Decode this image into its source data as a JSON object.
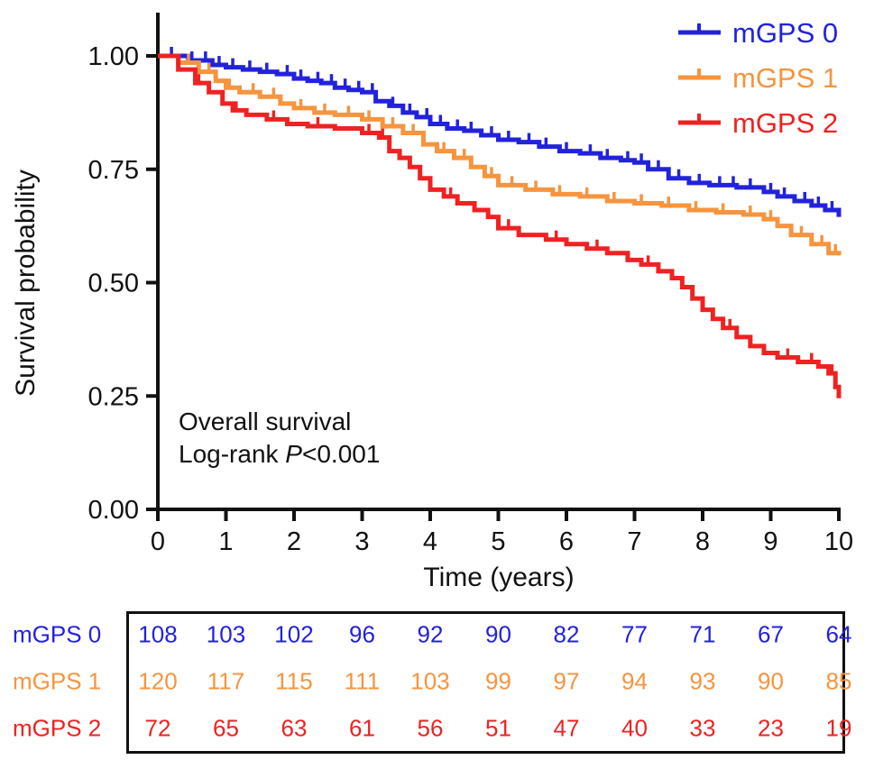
{
  "figure": {
    "background": "#ffffff",
    "text_color": "#111111"
  },
  "chart_data": {
    "type": "line",
    "subtype": "kaplan-meier-step",
    "title": "",
    "xlabel": "Time (years)",
    "ylabel": "Survival probability",
    "xlim": [
      0,
      10
    ],
    "ylim": [
      0,
      1.0
    ],
    "xticks": [
      0,
      1,
      2,
      3,
      4,
      5,
      6,
      7,
      8,
      9,
      10
    ],
    "yticks": [
      0,
      0.25,
      0.5,
      0.75,
      1.0
    ],
    "ytick_labels": [
      "0.00",
      "0.25",
      "0.50",
      "0.75",
      "1.00"
    ],
    "grid": false,
    "legend_position": "top-right",
    "annotation": {
      "line1": "Overall survival",
      "line2_prefix": "Log-rank ",
      "line2_italic": "P",
      "line2_suffix": "<0.001"
    },
    "series": [
      {
        "name": "mGPS 0",
        "color": "#2222dd",
        "x": [
          0,
          0.45,
          0.8,
          1.0,
          1.25,
          1.5,
          1.75,
          2.0,
          2.2,
          2.4,
          2.6,
          2.8,
          3.0,
          3.2,
          3.4,
          3.6,
          3.8,
          4.0,
          4.25,
          4.5,
          4.75,
          5.0,
          5.3,
          5.6,
          5.9,
          6.2,
          6.5,
          6.8,
          7.0,
          7.2,
          7.5,
          7.8,
          8.1,
          8.5,
          8.9,
          9.1,
          9.35,
          9.6,
          9.8,
          10.0
        ],
        "y": [
          1.0,
          0.99,
          0.98,
          0.975,
          0.97,
          0.965,
          0.96,
          0.95,
          0.945,
          0.94,
          0.93,
          0.925,
          0.92,
          0.9,
          0.89,
          0.875,
          0.865,
          0.85,
          0.84,
          0.835,
          0.825,
          0.815,
          0.81,
          0.8,
          0.79,
          0.785,
          0.775,
          0.77,
          0.765,
          0.75,
          0.73,
          0.72,
          0.715,
          0.71,
          0.7,
          0.69,
          0.68,
          0.67,
          0.66,
          0.645
        ],
        "censor_x": [
          0.2,
          0.5,
          0.7,
          0.9,
          1.1,
          1.35,
          1.6,
          1.9,
          2.1,
          2.35,
          2.55,
          2.75,
          2.95,
          3.15,
          3.45,
          3.7,
          3.95,
          4.15,
          4.4,
          4.6,
          4.9,
          5.15,
          5.45,
          5.7,
          6.0,
          6.35,
          6.6,
          6.9,
          7.1,
          7.35,
          7.65,
          7.95,
          8.25,
          8.45,
          8.7,
          9.0,
          9.2,
          9.5,
          9.7,
          9.9
        ]
      },
      {
        "name": "mGPS 1",
        "color": "#f7943e",
        "x": [
          0,
          0.3,
          0.6,
          0.85,
          1.0,
          1.2,
          1.5,
          1.8,
          2.0,
          2.3,
          2.6,
          3.0,
          3.3,
          3.6,
          3.9,
          4.1,
          4.35,
          4.6,
          4.8,
          5.0,
          5.4,
          5.8,
          6.2,
          6.6,
          7.0,
          7.4,
          7.8,
          8.2,
          8.6,
          8.9,
          9.1,
          9.3,
          9.6,
          9.85,
          10.0
        ],
        "y": [
          1.0,
          0.985,
          0.965,
          0.945,
          0.93,
          0.92,
          0.91,
          0.895,
          0.885,
          0.875,
          0.87,
          0.86,
          0.845,
          0.83,
          0.805,
          0.79,
          0.775,
          0.755,
          0.735,
          0.715,
          0.705,
          0.695,
          0.69,
          0.68,
          0.675,
          0.67,
          0.66,
          0.655,
          0.65,
          0.64,
          0.625,
          0.605,
          0.585,
          0.565,
          0.56
        ],
        "censor_x": [
          0.45,
          0.75,
          1.05,
          1.4,
          1.7,
          2.1,
          2.45,
          2.8,
          3.1,
          3.45,
          3.75,
          4.2,
          4.5,
          4.9,
          5.2,
          5.55,
          5.9,
          6.3,
          6.7,
          7.1,
          7.5,
          7.9,
          8.3,
          8.7,
          9.0,
          9.45,
          9.75,
          9.95
        ]
      },
      {
        "name": "mGPS 2",
        "color": "#ee2222",
        "x": [
          0,
          0.3,
          0.55,
          0.75,
          0.95,
          1.1,
          1.3,
          1.6,
          1.9,
          2.2,
          2.6,
          3.0,
          3.25,
          3.4,
          3.55,
          3.7,
          3.85,
          4.0,
          4.2,
          4.4,
          4.65,
          4.85,
          5.0,
          5.3,
          5.7,
          6.0,
          6.3,
          6.6,
          6.9,
          7.1,
          7.35,
          7.55,
          7.7,
          7.85,
          8.0,
          8.15,
          8.3,
          8.5,
          8.7,
          8.9,
          9.1,
          9.4,
          9.7,
          9.85,
          9.95,
          10.0
        ],
        "y": [
          1.0,
          0.97,
          0.94,
          0.92,
          0.895,
          0.88,
          0.87,
          0.86,
          0.85,
          0.845,
          0.84,
          0.83,
          0.82,
          0.79,
          0.775,
          0.755,
          0.73,
          0.705,
          0.69,
          0.675,
          0.66,
          0.645,
          0.62,
          0.605,
          0.595,
          0.585,
          0.575,
          0.565,
          0.55,
          0.54,
          0.525,
          0.51,
          0.49,
          0.465,
          0.44,
          0.42,
          0.4,
          0.38,
          0.36,
          0.345,
          0.335,
          0.325,
          0.315,
          0.3,
          0.27,
          0.245
        ],
        "censor_x": [
          0.6,
          1.15,
          1.7,
          2.35,
          3.1,
          3.3,
          4.3,
          5.15,
          5.85,
          6.45,
          7.2,
          8.4,
          9.25,
          9.6,
          9.9
        ]
      }
    ]
  },
  "risk_table": {
    "time_points": [
      0,
      1,
      2,
      3,
      4,
      5,
      6,
      7,
      8,
      9,
      10
    ],
    "rows": [
      {
        "label": "mGPS 0",
        "color": "#2222dd",
        "values": [
          108,
          103,
          102,
          96,
          92,
          90,
          82,
          77,
          71,
          67,
          64
        ]
      },
      {
        "label": "mGPS 1",
        "color": "#f7943e",
        "values": [
          120,
          117,
          115,
          111,
          103,
          99,
          97,
          94,
          93,
          90,
          85
        ]
      },
      {
        "label": "mGPS 2",
        "color": "#ee2222",
        "values": [
          72,
          65,
          63,
          61,
          56,
          51,
          47,
          40,
          33,
          23,
          19
        ]
      }
    ]
  }
}
